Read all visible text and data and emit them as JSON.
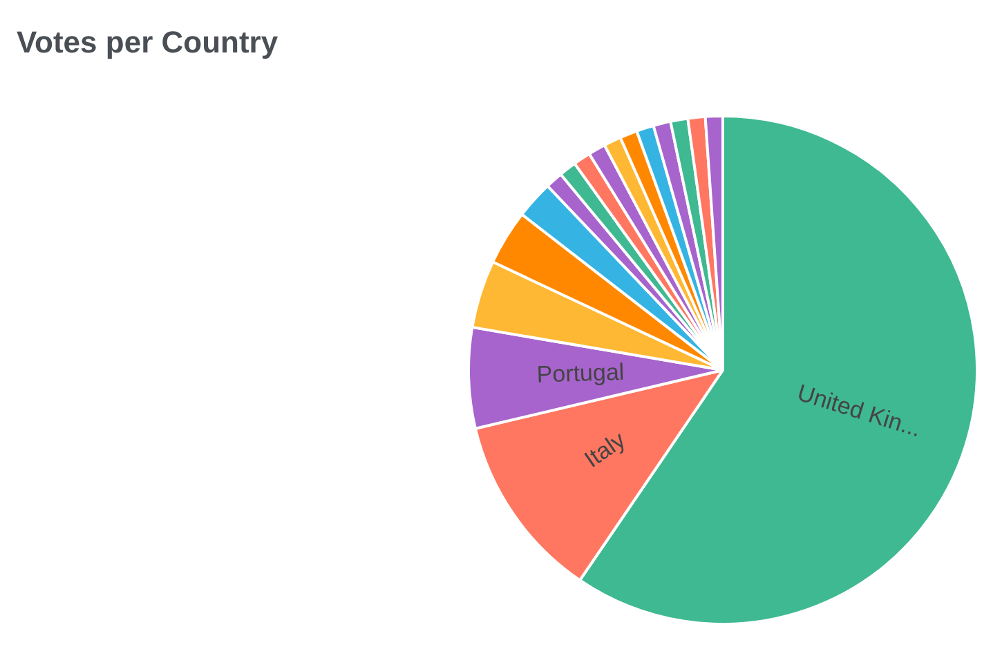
{
  "chart_data": {
    "type": "pie",
    "title": "Votes per Country",
    "categories": [
      "United Kin...",
      "Italy",
      "Portugal",
      null,
      null,
      null,
      null,
      null,
      null,
      null,
      null,
      null,
      null,
      null,
      null,
      null,
      null
    ],
    "values": [
      59.5,
      11.8,
      6.4,
      4.3,
      3.5,
      2.4,
      1.1,
      1.1,
      1.1,
      1.1,
      1.1,
      1.1,
      1.1,
      1.1,
      1.1,
      1.1,
      1.1
    ],
    "colors": [
      "#3fb991",
      "#ff7761",
      "#a764cd",
      "#ffb833",
      "#ff8800",
      "#35b4e4",
      "#a764cd",
      "#3fb991",
      "#ff7761",
      "#a764cd",
      "#ffb833",
      "#ff8800",
      "#35b4e4",
      "#a764cd",
      "#3fb991",
      "#ff7761",
      "#a764cd"
    ],
    "legend": false
  }
}
